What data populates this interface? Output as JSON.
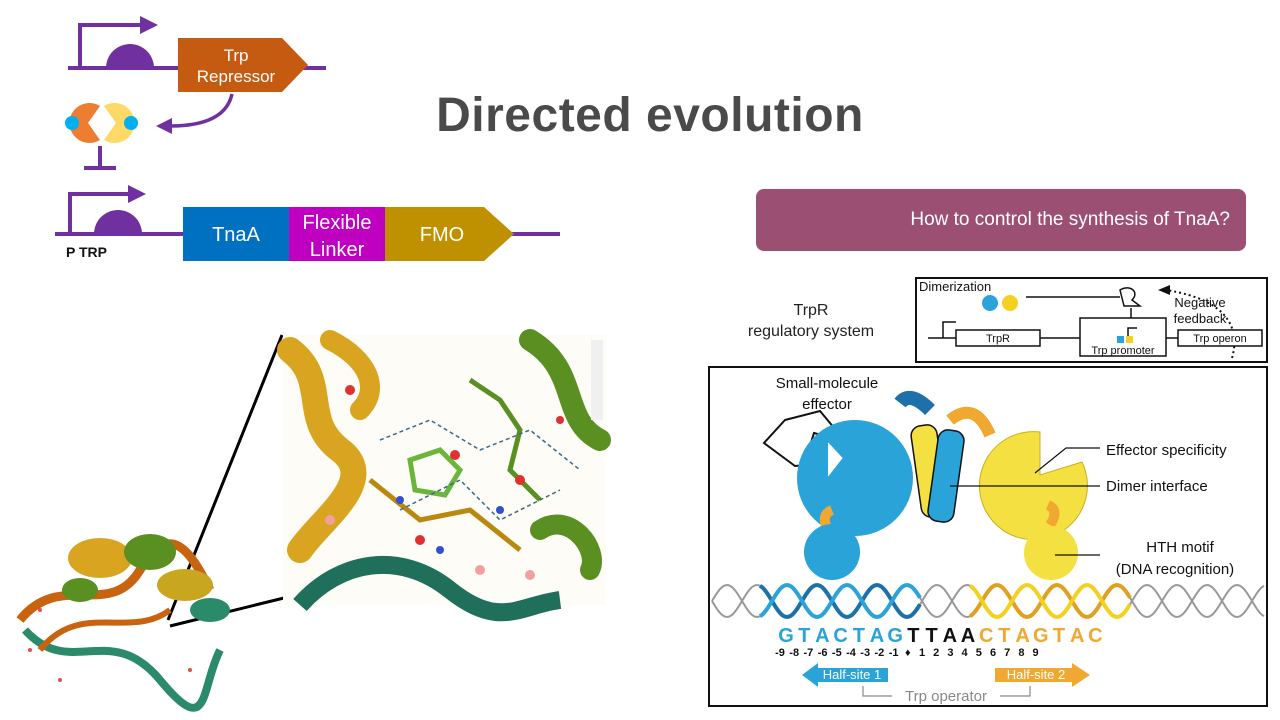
{
  "slide": {
    "title": "Directed evolution",
    "question": "How to control the synthesis of TnaA?"
  },
  "circuit": {
    "top_gene": [
      "Trp",
      "Repressor"
    ],
    "promoter_label": "P TRP",
    "tnaa": "TnaA",
    "linker": [
      "Flexible",
      "Linker"
    ],
    "fmo": "FMO",
    "colors": {
      "purple": "#7030a0",
      "orange": "#c55a11",
      "blue": "#0070c0",
      "magenta": "#c000c0",
      "gold": "#bf9000"
    }
  },
  "trpr_panel": {
    "system_label": [
      "TrpR",
      "regulatory system"
    ],
    "dimerization": "Dimerization",
    "negative_feedback": [
      "Negative",
      "feedback"
    ],
    "trpr_box": "TrpR",
    "promoter_box": "Trp promoter",
    "operon_box": "Trp operon",
    "small_molecule": [
      "Small-molecule",
      "effector"
    ],
    "effector_specificity": "Effector specificity",
    "dimer_interface": "Dimer interface",
    "hth": [
      "HTH motif",
      "(DNA recognition)"
    ],
    "sequence": [
      {
        "b": "G",
        "c": "#2aa3d9"
      },
      {
        "b": "T",
        "c": "#2aa3d9"
      },
      {
        "b": "A",
        "c": "#2aa3d9"
      },
      {
        "b": "C",
        "c": "#2aa3d9"
      },
      {
        "b": "T",
        "c": "#2aa3d9"
      },
      {
        "b": "A",
        "c": "#2aa3d9"
      },
      {
        "b": "G",
        "c": "#2aa3d9"
      },
      {
        "b": "T",
        "c": "#111111"
      },
      {
        "b": "T",
        "c": "#111111"
      },
      {
        "b": "A",
        "c": "#111111"
      },
      {
        "b": "A",
        "c": "#111111"
      },
      {
        "b": "C",
        "c": "#f0a830"
      },
      {
        "b": "T",
        "c": "#f0a830"
      },
      {
        "b": "A",
        "c": "#f0a830"
      },
      {
        "b": "G",
        "c": "#f0a830"
      },
      {
        "b": "T",
        "c": "#f0a830"
      },
      {
        "b": "A",
        "c": "#f0a830"
      },
      {
        "b": "C",
        "c": "#f0a830"
      }
    ],
    "positions": [
      "-9",
      "-8",
      "-7",
      "-6",
      "-5",
      "-4",
      "-3",
      "-2",
      "-1",
      "♦",
      "1",
      "2",
      "3",
      "4",
      "5",
      "6",
      "7",
      "8",
      "9"
    ],
    "half_site_1": "Half-site 1",
    "half_site_2": "Half-site 2",
    "operator": "Trp operator"
  }
}
